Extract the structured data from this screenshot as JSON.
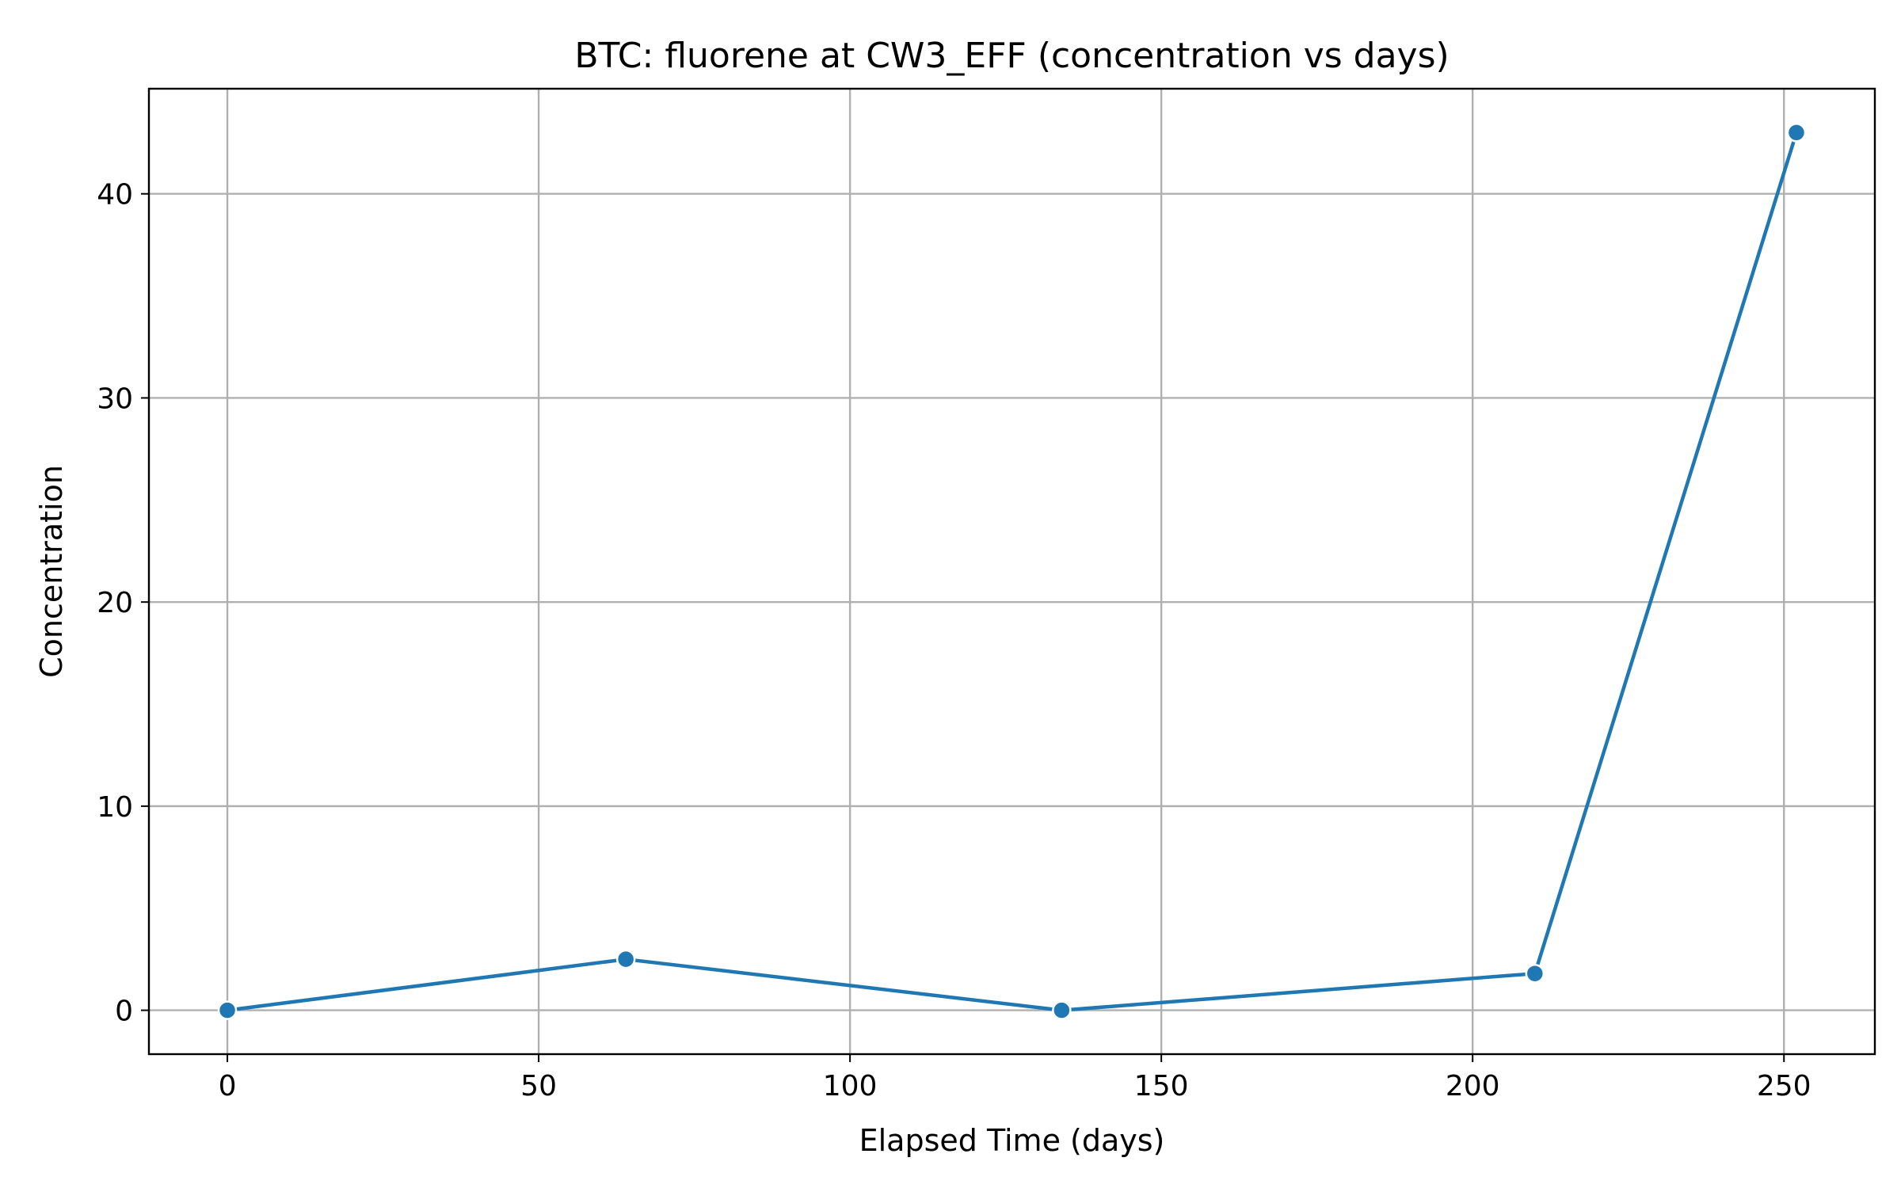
{
  "chart_data": {
    "type": "line",
    "title": "BTC: fluorene at CW3_EFF (concentration vs days)",
    "xlabel": "Elapsed Time (days)",
    "ylabel": "Concentration",
    "xlim": [
      -12.6,
      264.6
    ],
    "ylim": [
      -2.15,
      45.15
    ],
    "xticks": [
      0,
      50,
      100,
      150,
      200,
      250
    ],
    "yticks": [
      0,
      10,
      20,
      30,
      40
    ],
    "grid": true,
    "legend": "none",
    "series": [
      {
        "x": [
          0,
          64,
          134,
          210,
          252
        ],
        "values": [
          0,
          2.5,
          0,
          1.8,
          43
        ],
        "color": "#1f77b4",
        "marker": "circle"
      }
    ]
  }
}
